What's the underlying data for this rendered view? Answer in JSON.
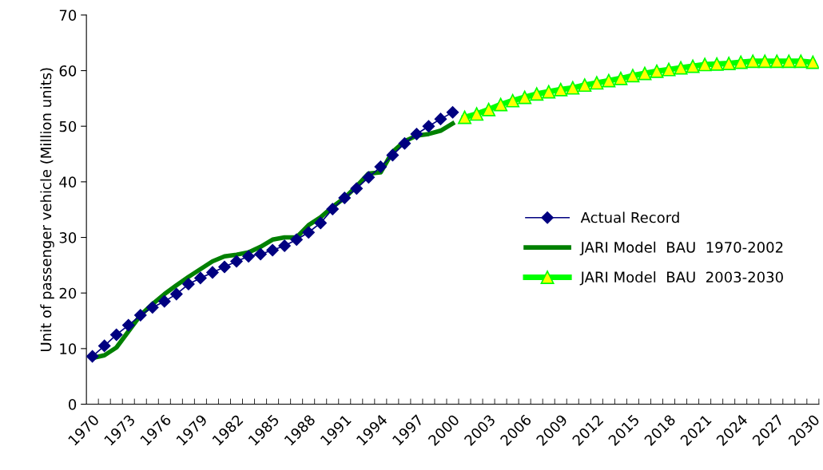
{
  "chart_data": {
    "type": "line",
    "ylabel": "Unit of passenger vehicle (Million units)",
    "categories": [
      "1970",
      null,
      null,
      "1973",
      null,
      null,
      "1976",
      null,
      null,
      "1979",
      null,
      null,
      "1982",
      null,
      null,
      "1985",
      null,
      null,
      "1988",
      null,
      null,
      "1991",
      null,
      null,
      "1994",
      null,
      null,
      "1997",
      null,
      null,
      "2000",
      null,
      null,
      "2003",
      null,
      null,
      "2006",
      null,
      null,
      "2009",
      null,
      null,
      "2012",
      null,
      null,
      "2015",
      null,
      null,
      "2018",
      null,
      null,
      "2021",
      null,
      null,
      "2024",
      null,
      null,
      "2027",
      null,
      null,
      "2030"
    ],
    "ylim": [
      0,
      70
    ],
    "yticks": [
      0,
      10,
      20,
      30,
      40,
      50,
      60,
      70
    ],
    "grid": false,
    "legend": "center right",
    "series": [
      {
        "name": "Actual Record",
        "color": "#000080",
        "marker": "diamond",
        "line_style": "solid",
        "values": [
          8.6,
          10.5,
          12.5,
          14.2,
          16.0,
          17.4,
          18.5,
          19.8,
          21.6,
          22.7,
          23.7,
          24.7,
          25.7,
          26.6,
          27.0,
          27.7,
          28.5,
          29.6,
          30.9,
          32.6,
          35.1,
          37.1,
          38.8,
          40.8,
          42.7,
          44.8,
          46.9,
          48.6,
          50.0,
          51.3,
          52.5,
          null,
          null,
          null,
          null,
          null,
          null,
          null,
          null,
          null,
          null,
          null,
          null,
          null,
          null,
          null,
          null,
          null,
          null,
          null,
          null,
          null,
          null,
          null,
          null,
          null,
          null,
          null,
          null,
          null,
          null
        ]
      },
      {
        "name": "JARI Model  BAU  1970-2002",
        "color": "#008000",
        "marker": "none",
        "line_style": "solid",
        "values": [
          8.3,
          8.8,
          10.2,
          13.1,
          16.0,
          18.0,
          19.8,
          21.4,
          22.9,
          24.3,
          25.7,
          26.6,
          26.9,
          27.3,
          28.3,
          29.6,
          30.0,
          30.0,
          32.2,
          33.6,
          35.5,
          37.1,
          39.2,
          41.5,
          41.7,
          45.4,
          47.3,
          48.3,
          48.6,
          49.2,
          50.5,
          null,
          null,
          null,
          null,
          null,
          null,
          null,
          null,
          null,
          null,
          null,
          null,
          null,
          null,
          null,
          null,
          null,
          null,
          null,
          null,
          null,
          null,
          null,
          null,
          null,
          null,
          null,
          null,
          null,
          null
        ]
      },
      {
        "name": "JARI Model  BAU  2003-2030",
        "color": "#00ff00",
        "marker": "triangle",
        "line_style": "solid",
        "values": [
          null,
          null,
          null,
          null,
          null,
          null,
          null,
          null,
          null,
          null,
          null,
          null,
          null,
          null,
          null,
          null,
          null,
          null,
          null,
          null,
          null,
          null,
          null,
          null,
          null,
          null,
          null,
          null,
          null,
          null,
          null,
          51.6,
          52.2,
          53.0,
          53.9,
          54.6,
          55.2,
          55.8,
          56.2,
          56.6,
          56.9,
          57.4,
          57.8,
          58.2,
          58.6,
          59.1,
          59.5,
          59.9,
          60.2,
          60.5,
          60.8,
          61.1,
          61.2,
          61.3,
          61.5,
          61.7,
          61.7,
          61.7,
          61.7,
          61.7,
          61.5
        ]
      }
    ]
  }
}
